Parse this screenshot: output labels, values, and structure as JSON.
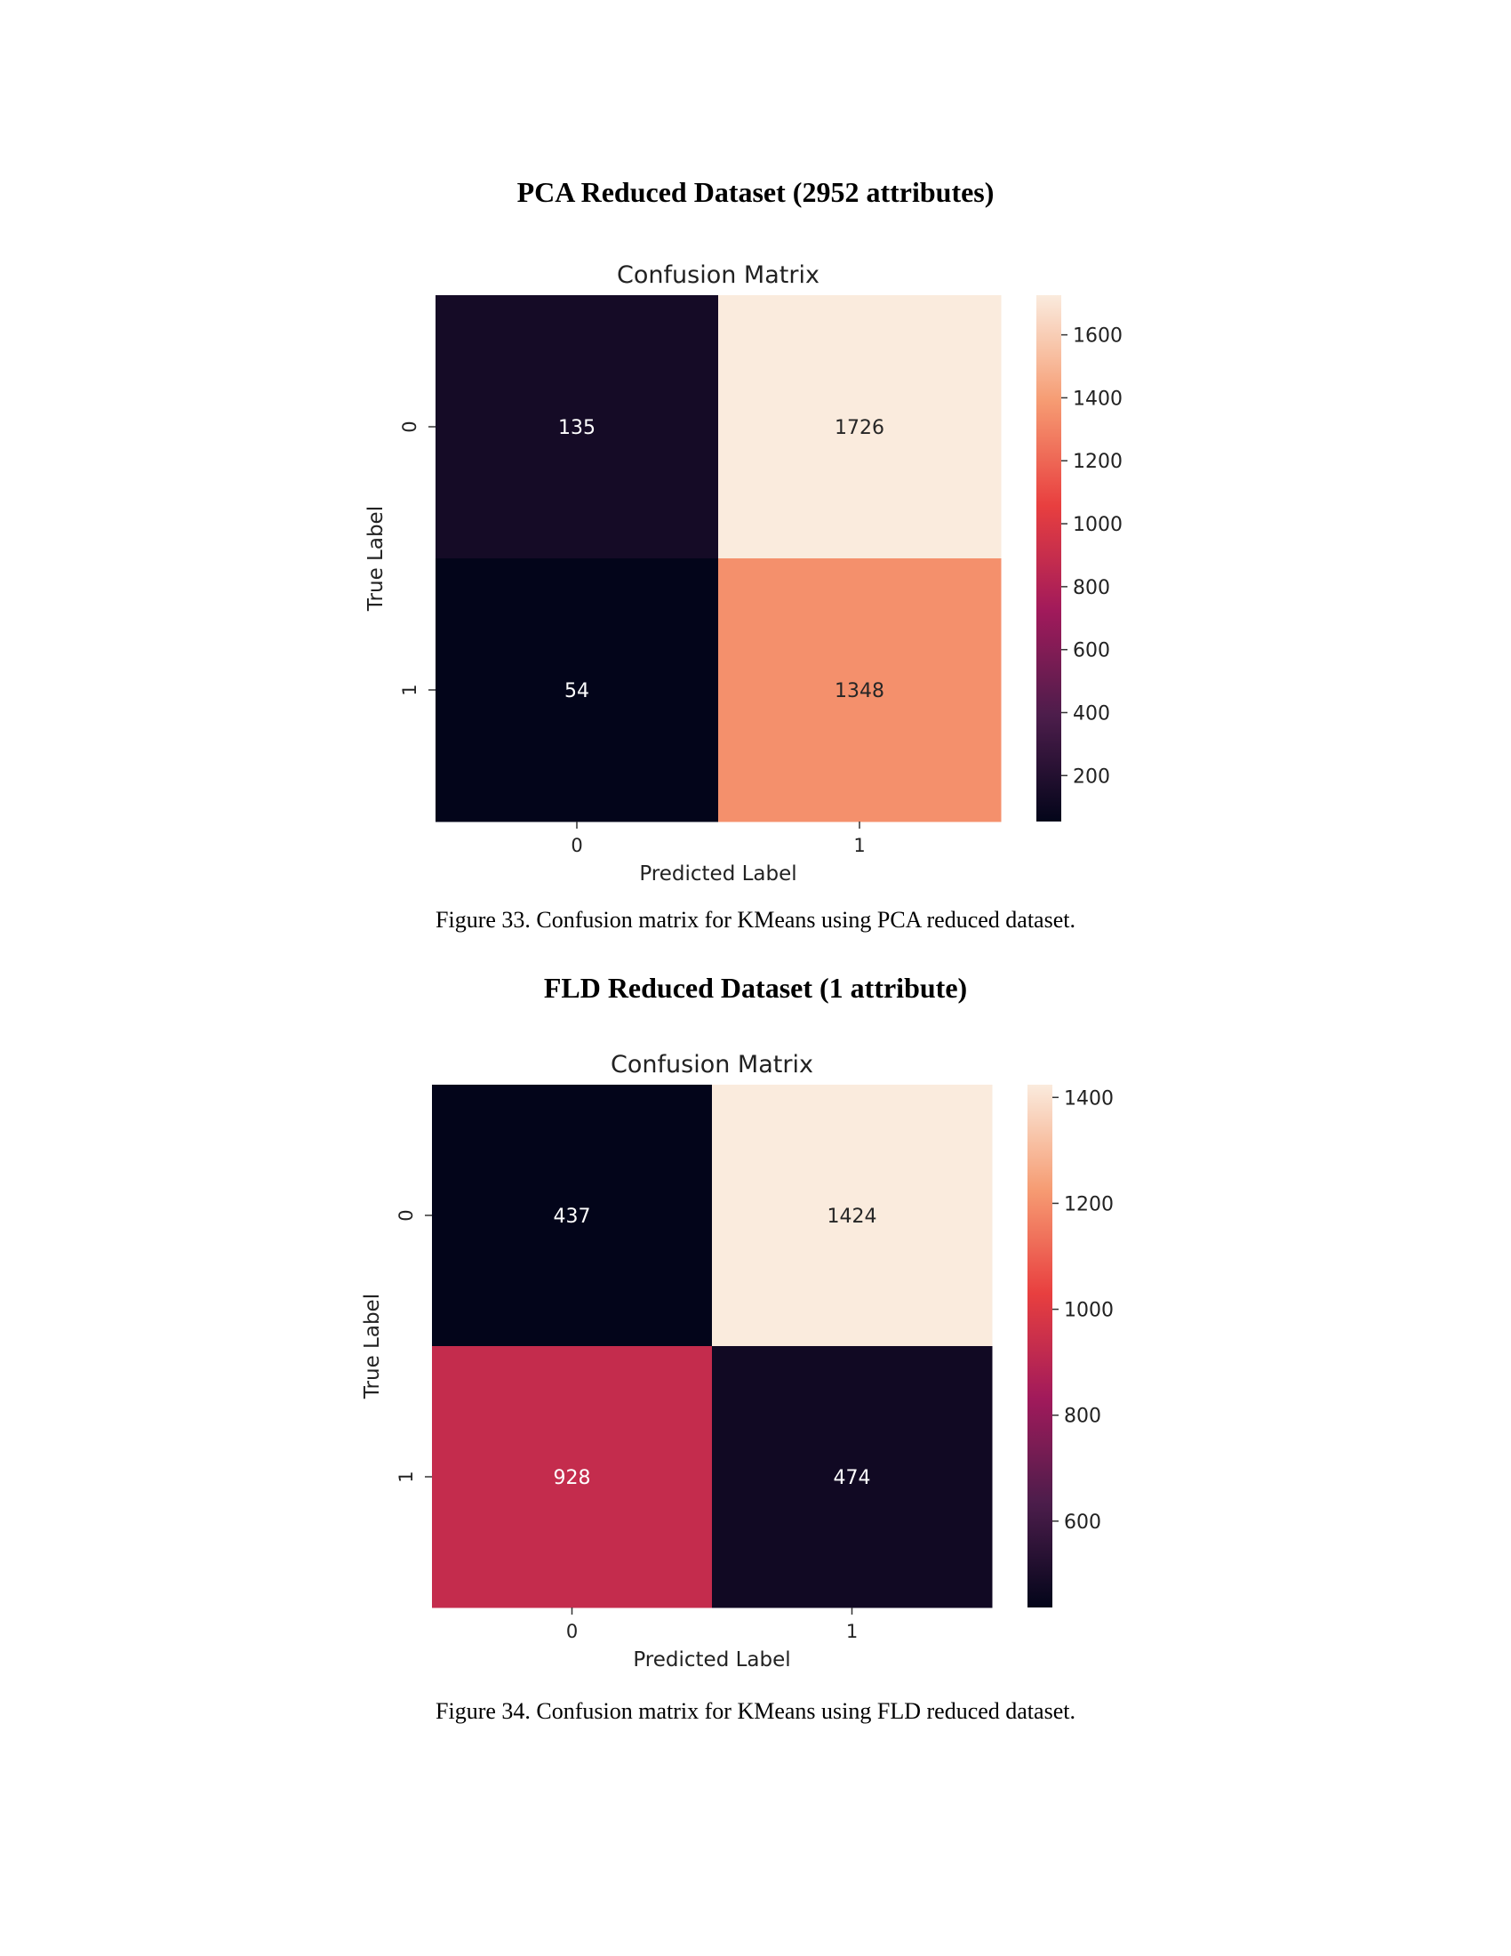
{
  "sections": [
    {
      "heading": "PCA Reduced Dataset (2952 attributes)",
      "caption": "Figure 33. Confusion matrix for KMeans using PCA reduced dataset."
    },
    {
      "heading": "FLD Reduced Dataset (1 attribute)",
      "caption": "Figure 34. Confusion matrix for KMeans using FLD reduced dataset."
    }
  ],
  "chart_data": [
    {
      "type": "heatmap",
      "title": "Confusion Matrix",
      "xlabel": "Predicted Label",
      "ylabel": "True Label",
      "x_categories": [
        "0",
        "1"
      ],
      "y_categories": [
        "0",
        "1"
      ],
      "values": [
        [
          135,
          1726
        ],
        [
          54,
          1348
        ]
      ],
      "colorbar": {
        "min": 54,
        "max": 1726,
        "ticks": [
          1600,
          1400,
          1200,
          1000,
          800,
          600,
          400,
          200
        ],
        "tick_labels": [
          "1600",
          "1400",
          "1200",
          "1000",
          "800",
          "600",
          "400",
          "200"
        ]
      },
      "colormap": [
        "#03051a",
        "#4c1d4b",
        "#a11a5b",
        "#e83f3f",
        "#f69c73",
        "#faebdd"
      ]
    },
    {
      "type": "heatmap",
      "title": "Confusion Matrix",
      "xlabel": "Predicted Label",
      "ylabel": "True Label",
      "x_categories": [
        "0",
        "1"
      ],
      "y_categories": [
        "0",
        "1"
      ],
      "values": [
        [
          437,
          1424
        ],
        [
          928,
          474
        ]
      ],
      "colorbar": {
        "min": 437,
        "max": 1424,
        "ticks": [
          1400,
          1200,
          1000,
          800,
          600
        ],
        "tick_labels": [
          "1400",
          "1200",
          "1000",
          "800",
          "600"
        ]
      },
      "colormap": [
        "#03051a",
        "#4c1d4b",
        "#a11a5b",
        "#e83f3f",
        "#f69c73",
        "#faebdd"
      ]
    }
  ]
}
